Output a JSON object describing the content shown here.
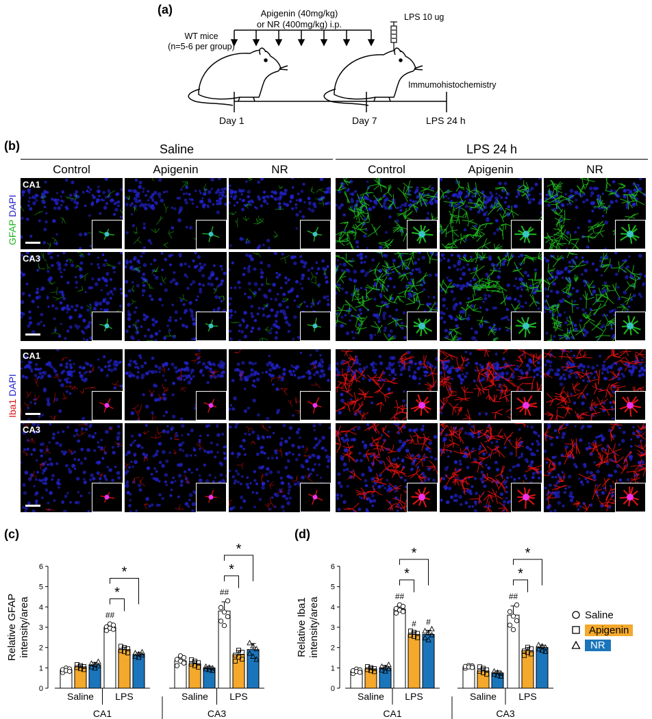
{
  "panel_a": {
    "letter": "(a)",
    "treatment_line1": "Apigenin (40mg/kg)",
    "treatment_line2": "or NR (400mg/kg) i.p.",
    "mice_line1": "WT mice",
    "mice_line2": "(n=5-6 per group)",
    "lps_dose": "LPS 10 ug",
    "assay": "Immumohistochemistry",
    "timeline": [
      "Day 1",
      "Day 7",
      "LPS 24 h"
    ]
  },
  "panel_b": {
    "letter": "(b)",
    "groups": [
      "Saline",
      "LPS 24 h"
    ],
    "conditions": [
      "Control",
      "Apigenin",
      "NR"
    ],
    "regions": [
      "CA1",
      "CA3"
    ],
    "stain_top": {
      "marker": "GFAP",
      "counter": "DAPI",
      "marker_color": "#1db31d",
      "counter_color": "#2222cc"
    },
    "stain_bottom": {
      "marker": "Iba1",
      "counter": "DAPI",
      "marker_color": "#dd1111",
      "counter_color": "#2222cc"
    }
  },
  "legend": {
    "items": [
      {
        "label": "Saline",
        "marker": "circle",
        "fill": "#ffffff"
      },
      {
        "label": "Apigenin",
        "marker": "square",
        "fill": "#f4a92c"
      },
      {
        "label": "NR",
        "marker": "triangle",
        "fill": "#1b75bb"
      }
    ]
  },
  "chart_data": [
    {
      "panel": "(c)",
      "type": "bar",
      "ylabel_line1": "Relative GFAP",
      "ylabel_line2": "intensity/area",
      "ylim": [
        0,
        6
      ],
      "yticks": [
        "0",
        "1",
        "2",
        "3",
        "4",
        "5",
        "6"
      ],
      "regions": [
        "CA1",
        "CA3"
      ],
      "treatments": [
        "Saline",
        "LPS"
      ],
      "series": [
        {
          "name": "Saline",
          "values": [
            0.9,
            3.0,
            1.35,
            3.8
          ],
          "errors": [
            0.08,
            0.12,
            0.18,
            0.45
          ]
        },
        {
          "name": "Apigenin",
          "values": [
            1.05,
            1.9,
            1.2,
            1.65
          ],
          "errors": [
            0.1,
            0.12,
            0.15,
            0.2
          ]
        },
        {
          "name": "NR",
          "values": [
            1.15,
            1.65,
            1.0,
            1.9
          ],
          "errors": [
            0.12,
            0.1,
            0.08,
            0.3
          ]
        }
      ],
      "annotations": {
        "hash": "##",
        "star": "*"
      }
    },
    {
      "panel": "(d)",
      "type": "bar",
      "ylabel_line1": "Relative Iba1",
      "ylabel_line2": "intensity/area",
      "ylim": [
        0,
        6
      ],
      "yticks": [
        "0",
        "1",
        "2",
        "3",
        "4",
        "5",
        "6"
      ],
      "regions": [
        "CA1",
        "CA3"
      ],
      "treatments": [
        "Saline",
        "LPS"
      ],
      "series": [
        {
          "name": "Saline",
          "values": [
            0.85,
            3.9,
            1.05,
            3.6
          ],
          "errors": [
            0.08,
            0.15,
            0.05,
            0.45
          ]
        },
        {
          "name": "Apigenin",
          "values": [
            0.95,
            2.65,
            0.85,
            1.85
          ],
          "errors": [
            0.1,
            0.12,
            0.15,
            0.15
          ]
        },
        {
          "name": "NR",
          "values": [
            1.0,
            2.65,
            0.75,
            2.0
          ],
          "errors": [
            0.12,
            0.2,
            0.1,
            0.12
          ]
        }
      ],
      "annotations": {
        "hash": "##",
        "single_hash": "#",
        "star": "*"
      }
    }
  ]
}
